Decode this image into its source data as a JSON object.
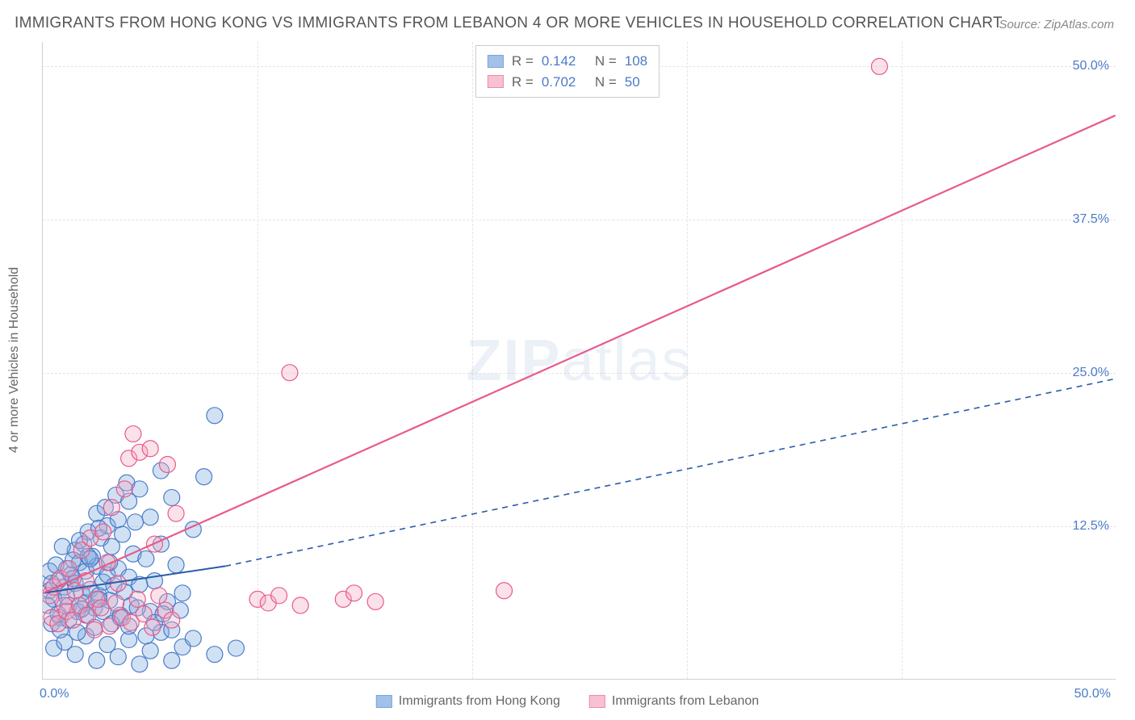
{
  "title": "IMMIGRANTS FROM HONG KONG VS IMMIGRANTS FROM LEBANON 4 OR MORE VEHICLES IN HOUSEHOLD CORRELATION CHART",
  "source": "Source: ZipAtlas.com",
  "watermark_bold": "ZIP",
  "watermark_light": "atlas",
  "chart": {
    "type": "scatter",
    "xlim": [
      0,
      50
    ],
    "ylim": [
      0,
      52
    ],
    "xtick_labels": [
      "0.0%",
      "50.0%"
    ],
    "xtick_positions": [
      0,
      50
    ],
    "ytick_labels": [
      "12.5%",
      "25.0%",
      "37.5%",
      "50.0%"
    ],
    "ytick_positions": [
      12.5,
      25,
      37.5,
      50
    ],
    "grid_x_minor": [
      10,
      20,
      30,
      40
    ],
    "grid_color": "#e5e5e5",
    "background_color": "#ffffff",
    "ylabel": "4 or more Vehicles in Household",
    "marker_radius": 10,
    "marker_fill_opacity": 0.35,
    "marker_stroke_width": 1.2,
    "series": [
      {
        "name": "Immigrants from Hong Kong",
        "fill_color": "#7aa8e0",
        "stroke_color": "#4a7bc8",
        "R": "0.142",
        "N": "108",
        "trend": {
          "solid_from": [
            0,
            7.0
          ],
          "solid_to": [
            8.5,
            9.2
          ],
          "dashed_to": [
            50,
            24.5
          ],
          "color": "#2a5ba8",
          "width": 2.0
        },
        "points": [
          [
            0.3,
            7.2
          ],
          [
            0.5,
            6.5
          ],
          [
            0.7,
            8.0
          ],
          [
            0.8,
            5.0
          ],
          [
            1.0,
            7.5
          ],
          [
            1.1,
            9.0
          ],
          [
            1.2,
            6.0
          ],
          [
            1.3,
            8.5
          ],
          [
            1.5,
            7.8
          ],
          [
            1.5,
            10.5
          ],
          [
            1.6,
            5.5
          ],
          [
            1.7,
            9.5
          ],
          [
            1.8,
            7.0
          ],
          [
            1.9,
            11.0
          ],
          [
            2.0,
            6.2
          ],
          [
            2.0,
            8.8
          ],
          [
            2.1,
            12.0
          ],
          [
            2.2,
            7.3
          ],
          [
            2.3,
            10.0
          ],
          [
            2.4,
            5.8
          ],
          [
            2.5,
            9.2
          ],
          [
            2.5,
            13.5
          ],
          [
            2.6,
            6.8
          ],
          [
            2.7,
            11.5
          ],
          [
            2.8,
            7.9
          ],
          [
            2.9,
            14.0
          ],
          [
            3.0,
            8.5
          ],
          [
            3.0,
            12.5
          ],
          [
            3.1,
            6.4
          ],
          [
            3.2,
            10.8
          ],
          [
            3.3,
            7.6
          ],
          [
            3.4,
            15.0
          ],
          [
            3.5,
            9.0
          ],
          [
            3.5,
            13.0
          ],
          [
            3.6,
            5.2
          ],
          [
            3.7,
            11.8
          ],
          [
            3.8,
            7.1
          ],
          [
            3.9,
            16.0
          ],
          [
            4.0,
            8.3
          ],
          [
            4.0,
            14.5
          ],
          [
            4.1,
            6.0
          ],
          [
            4.2,
            10.2
          ],
          [
            4.3,
            12.8
          ],
          [
            4.5,
            7.7
          ],
          [
            4.5,
            15.5
          ],
          [
            4.8,
            9.8
          ],
          [
            5.0,
            5.5
          ],
          [
            5.0,
            13.2
          ],
          [
            5.2,
            8.0
          ],
          [
            5.5,
            17.0
          ],
          [
            5.5,
            11.0
          ],
          [
            5.8,
            6.3
          ],
          [
            6.0,
            14.8
          ],
          [
            6.2,
            9.3
          ],
          [
            6.5,
            7.0
          ],
          [
            7.0,
            12.2
          ],
          [
            7.5,
            16.5
          ],
          [
            8.0,
            21.5
          ],
          [
            0.5,
            2.5
          ],
          [
            1.0,
            3.0
          ],
          [
            1.5,
            2.0
          ],
          [
            2.0,
            3.5
          ],
          [
            2.5,
            1.5
          ],
          [
            3.0,
            2.8
          ],
          [
            3.5,
            1.8
          ],
          [
            4.0,
            3.2
          ],
          [
            4.5,
            1.2
          ],
          [
            5.0,
            2.3
          ],
          [
            5.5,
            3.8
          ],
          [
            6.0,
            1.5
          ],
          [
            6.5,
            2.6
          ],
          [
            7.0,
            3.3
          ],
          [
            8.0,
            2.0
          ],
          [
            9.0,
            2.5
          ],
          [
            0.4,
            4.5
          ],
          [
            0.8,
            4.0
          ],
          [
            1.2,
            4.8
          ],
          [
            1.6,
            3.8
          ],
          [
            2.0,
            5.2
          ],
          [
            2.4,
            4.2
          ],
          [
            2.8,
            5.5
          ],
          [
            3.2,
            4.5
          ],
          [
            3.6,
            5.0
          ],
          [
            4.0,
            4.3
          ],
          [
            4.4,
            5.8
          ],
          [
            4.8,
            3.5
          ],
          [
            5.2,
            4.6
          ],
          [
            5.6,
            5.3
          ],
          [
            6.0,
            4.0
          ],
          [
            6.4,
            5.6
          ],
          [
            0.3,
            8.8
          ],
          [
            0.6,
            9.3
          ],
          [
            0.9,
            10.8
          ],
          [
            1.4,
            9.7
          ],
          [
            1.7,
            11.3
          ],
          [
            2.1,
            10.0
          ],
          [
            2.6,
            12.3
          ],
          [
            3.1,
            9.5
          ],
          [
            0.2,
            6.0
          ],
          [
            0.4,
            7.8
          ],
          [
            0.7,
            5.3
          ],
          [
            1.1,
            6.7
          ],
          [
            1.4,
            8.2
          ],
          [
            1.8,
            5.7
          ],
          [
            2.2,
            9.8
          ],
          [
            2.6,
            6.5
          ]
        ]
      },
      {
        "name": "Immigrants from Lebanon",
        "fill_color": "#f4a8c0",
        "stroke_color": "#e85a8a",
        "R": "0.702",
        "N": "50",
        "trend": {
          "solid_from": [
            0,
            7.0
          ],
          "solid_to": [
            50,
            46.0
          ],
          "color": "#e85a8a",
          "width": 2.2
        },
        "points": [
          [
            0.3,
            6.8
          ],
          [
            0.5,
            7.5
          ],
          [
            0.8,
            8.2
          ],
          [
            1.0,
            6.0
          ],
          [
            1.2,
            9.0
          ],
          [
            1.5,
            7.2
          ],
          [
            1.8,
            10.5
          ],
          [
            2.0,
            8.0
          ],
          [
            2.2,
            11.5
          ],
          [
            2.5,
            6.5
          ],
          [
            2.8,
            12.0
          ],
          [
            3.0,
            9.5
          ],
          [
            3.2,
            14.0
          ],
          [
            3.5,
            7.8
          ],
          [
            3.8,
            15.5
          ],
          [
            4.0,
            18.0
          ],
          [
            4.2,
            20.0
          ],
          [
            4.5,
            18.5
          ],
          [
            5.0,
            18.8
          ],
          [
            5.2,
            11.0
          ],
          [
            5.8,
            17.5
          ],
          [
            6.2,
            13.5
          ],
          [
            10.0,
            6.5
          ],
          [
            10.5,
            6.2
          ],
          [
            11.0,
            6.8
          ],
          [
            12.0,
            6.0
          ],
          [
            14.0,
            6.5
          ],
          [
            14.5,
            7.0
          ],
          [
            15.5,
            6.3
          ],
          [
            21.5,
            7.2
          ],
          [
            11.5,
            25.0
          ],
          [
            39.0,
            50.0
          ],
          [
            0.4,
            5.0
          ],
          [
            0.7,
            4.5
          ],
          [
            1.1,
            5.5
          ],
          [
            1.4,
            4.8
          ],
          [
            1.7,
            6.0
          ],
          [
            2.1,
            5.2
          ],
          [
            2.4,
            4.0
          ],
          [
            2.7,
            5.8
          ],
          [
            3.1,
            4.3
          ],
          [
            3.4,
            6.2
          ],
          [
            3.7,
            5.0
          ],
          [
            4.1,
            4.6
          ],
          [
            4.4,
            6.5
          ],
          [
            4.7,
            5.3
          ],
          [
            5.1,
            4.2
          ],
          [
            5.4,
            6.8
          ],
          [
            5.7,
            5.6
          ],
          [
            6.0,
            4.8
          ]
        ]
      }
    ],
    "legend_top_labels": {
      "R": "R =",
      "N": "N ="
    }
  },
  "legend_bottom": [
    {
      "label": "Immigrants from Hong Kong",
      "fill": "#7aa8e0",
      "stroke": "#4a7bc8"
    },
    {
      "label": "Immigrants from Lebanon",
      "fill": "#f4a8c0",
      "stroke": "#e85a8a"
    }
  ]
}
